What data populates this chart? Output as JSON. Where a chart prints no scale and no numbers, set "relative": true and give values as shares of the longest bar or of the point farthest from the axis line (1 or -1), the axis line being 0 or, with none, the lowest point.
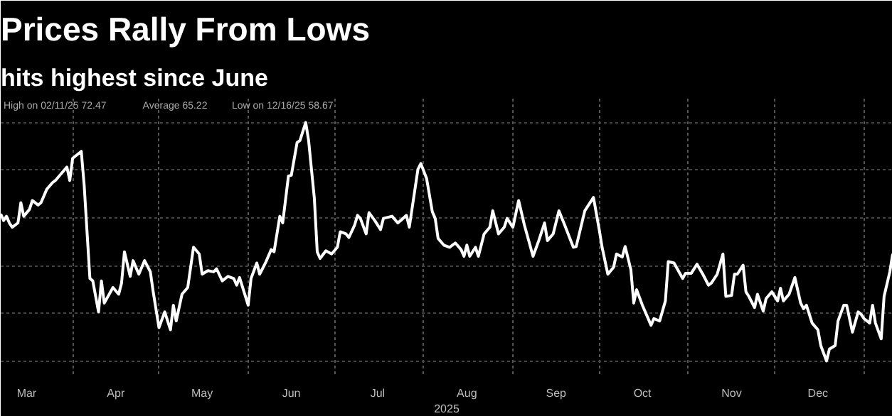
{
  "chart_data": {
    "type": "line",
    "title": "Prices Rally From Lows",
    "subtitle": "hits highest since June",
    "xlabel": "2025",
    "annotations": [
      "High on 02/11/25 72.47",
      "Average 65.22",
      "Low on 12/16/25 58.67"
    ],
    "relative": true,
    "grid": true,
    "line_style": "solid",
    "xlim": [
      "2025-03-07",
      "2026-01-11"
    ],
    "xticks": [
      {
        "value": "2025-03-16",
        "label": "Mar"
      },
      {
        "value": "2025-04-01",
        "label": null
      },
      {
        "value": "2025-04-16",
        "label": "Apr"
      },
      {
        "value": "2025-05-01",
        "label": null
      },
      {
        "value": "2025-05-16",
        "label": "May"
      },
      {
        "value": "2025-06-01",
        "label": null
      },
      {
        "value": "2025-06-16",
        "label": "Jun"
      },
      {
        "value": "2025-07-01",
        "label": null
      },
      {
        "value": "2025-07-16",
        "label": "Jul"
      },
      {
        "value": "2025-08-01",
        "label": null
      },
      {
        "value": "2025-08-16",
        "label": "Aug"
      },
      {
        "value": "2025-09-01",
        "label": null
      },
      {
        "value": "2025-09-16",
        "label": "Sep"
      },
      {
        "value": "2025-10-01",
        "label": null
      },
      {
        "value": "2025-10-16",
        "label": "Oct"
      },
      {
        "value": "2025-11-01",
        "label": null
      },
      {
        "value": "2025-11-16",
        "label": "Nov"
      },
      {
        "value": "2025-12-01",
        "label": null
      },
      {
        "value": "2025-12-16",
        "label": "Dec"
      },
      {
        "value": "2026-01-01",
        "label": null
      }
    ],
    "x": [
      "2025-03-07",
      "2025-03-08",
      "2025-03-09",
      "2025-03-10",
      "2025-03-11",
      "2025-03-13",
      "2025-03-14",
      "2025-03-15",
      "2025-03-17",
      "2025-03-18",
      "2025-03-20",
      "2025-03-21",
      "2025-03-23",
      "2025-03-25",
      "2025-03-26",
      "2025-03-28",
      "2025-03-30",
      "2025-03-31",
      "2025-04-01",
      "2025-04-04",
      "2025-04-05",
      "2025-04-07",
      "2025-04-08",
      "2025-04-10",
      "2025-04-11",
      "2025-04-12",
      "2025-04-15",
      "2025-04-17",
      "2025-04-18",
      "2025-04-19",
      "2025-04-21",
      "2025-04-22",
      "2025-04-24",
      "2025-04-26",
      "2025-04-28",
      "2025-04-29",
      "2025-05-01",
      "2025-05-03",
      "2025-05-05",
      "2025-05-06",
      "2025-05-07",
      "2025-05-09",
      "2025-05-11",
      "2025-05-13",
      "2025-05-15",
      "2025-05-16",
      "2025-05-18",
      "2025-05-20",
      "2025-05-21",
      "2025-05-23",
      "2025-05-25",
      "2025-05-27",
      "2025-05-28",
      "2025-05-29",
      "2025-06-01",
      "2025-06-02",
      "2025-06-04",
      "2025-06-05",
      "2025-06-07",
      "2025-06-09",
      "2025-06-10",
      "2025-06-12",
      "2025-06-13",
      "2025-06-15",
      "2025-06-16",
      "2025-06-18",
      "2025-06-19",
      "2025-06-21",
      "2025-06-22",
      "2025-06-24",
      "2025-06-25",
      "2025-06-26",
      "2025-06-28",
      "2025-06-30",
      "2025-07-02",
      "2025-07-03",
      "2025-07-05",
      "2025-07-06",
      "2025-07-08",
      "2025-07-09",
      "2025-07-10",
      "2025-07-12",
      "2025-07-13",
      "2025-07-15",
      "2025-07-17",
      "2025-07-18",
      "2025-07-21",
      "2025-07-23",
      "2025-07-24",
      "2025-07-26",
      "2025-07-27",
      "2025-07-30",
      "2025-07-31",
      "2025-08-02",
      "2025-08-04",
      "2025-08-05",
      "2025-08-06",
      "2025-08-08",
      "2025-08-10",
      "2025-08-12",
      "2025-08-14",
      "2025-08-15",
      "2025-08-16",
      "2025-08-17",
      "2025-08-19",
      "2025-08-20",
      "2025-08-22",
      "2025-08-24",
      "2025-08-25",
      "2025-08-27",
      "2025-08-29",
      "2025-08-30",
      "2025-09-01",
      "2025-09-03",
      "2025-09-05",
      "2025-09-08",
      "2025-09-10",
      "2025-09-12",
      "2025-09-13",
      "2025-09-15",
      "2025-09-17",
      "2025-09-19",
      "2025-09-22",
      "2025-09-23",
      "2025-09-26",
      "2025-09-29",
      "2025-10-01",
      "2025-10-02",
      "2025-10-04",
      "2025-10-06",
      "2025-10-07",
      "2025-10-09",
      "2025-10-10",
      "2025-10-12",
      "2025-10-13",
      "2025-10-14",
      "2025-10-16",
      "2025-10-17",
      "2025-10-19",
      "2025-10-20",
      "2025-10-22",
      "2025-10-24",
      "2025-10-25",
      "2025-10-27",
      "2025-10-30",
      "2025-10-31",
      "2025-11-02",
      "2025-11-04",
      "2025-11-06",
      "2025-11-08",
      "2025-11-09",
      "2025-11-11",
      "2025-11-13",
      "2025-11-14",
      "2025-11-16",
      "2025-11-17",
      "2025-11-18",
      "2025-11-20",
      "2025-11-21",
      "2025-11-22",
      "2025-11-24",
      "2025-11-25",
      "2025-11-27",
      "2025-11-28",
      "2025-11-30",
      "2025-12-02",
      "2025-12-03",
      "2025-12-04",
      "2025-12-06",
      "2025-12-08",
      "2025-12-10",
      "2025-12-11",
      "2025-12-12",
      "2025-12-14",
      "2025-12-16",
      "2025-12-17",
      "2025-12-19",
      "2025-12-20",
      "2025-12-22",
      "2025-12-23",
      "2025-12-25",
      "2025-12-26",
      "2025-12-28",
      "2025-12-30",
      "2025-12-31",
      "2026-01-01",
      "2026-01-03",
      "2026-01-04",
      "2026-01-05",
      "2026-01-07",
      "2026-01-08",
      "2026-01-10",
      "2026-01-11"
    ],
    "series": [
      {
        "color": "#ffffff",
        "values": [
          0.617,
          0.589,
          0.607,
          0.579,
          0.561,
          0.579,
          0.664,
          0.607,
          0.636,
          0.673,
          0.654,
          0.664,
          0.72,
          0.748,
          0.757,
          0.785,
          0.813,
          0.757,
          0.85,
          0.879,
          0.738,
          0.346,
          0.336,
          0.206,
          0.336,
          0.243,
          0.308,
          0.28,
          0.327,
          0.458,
          0.355,
          0.421,
          0.364,
          0.421,
          0.374,
          0.29,
          0.14,
          0.206,
          0.131,
          0.234,
          0.168,
          0.28,
          0.308,
          0.477,
          0.449,
          0.364,
          0.379,
          0.374,
          0.387,
          0.336,
          0.355,
          0.346,
          0.318,
          0.35,
          0.234,
          0.346,
          0.411,
          0.364,
          0.411,
          0.467,
          0.458,
          0.607,
          0.579,
          0.776,
          0.779,
          0.916,
          0.925,
          1,
          0.925,
          0.682,
          0.458,
          0.43,
          0.462,
          0.449,
          0.477,
          0.542,
          0.533,
          0.518,
          0.57,
          0.611,
          0.598,
          0.533,
          0.622,
          0.589,
          0.551,
          0.598,
          0.607,
          0.579,
          0.589,
          0.611,
          0.561,
          0.804,
          0.828,
          0.766,
          0.626,
          0.598,
          0.514,
          0.486,
          0.477,
          0.495,
          0.467,
          0.439,
          0.486,
          0.439,
          0.477,
          0.439,
          0.533,
          0.561,
          0.63,
          0.533,
          0.561,
          0.598,
          0.561,
          0.673,
          0.57,
          0.439,
          0.505,
          0.579,
          0.505,
          0.533,
          0.63,
          0.57,
          0.477,
          0.48,
          0.63,
          0.686,
          0.551,
          0.477,
          0.364,
          0.393,
          0.449,
          0.436,
          0.48,
          0.383,
          0.243,
          0.299,
          0.234,
          0.206,
          0.15,
          0.178,
          0.168,
          0.252,
          0.417,
          0.411,
          0.346,
          0.368,
          0.368,
          0.406,
          0.364,
          0.318,
          0.327,
          0.364,
          0.449,
          0.271,
          0.275,
          0.364,
          0.364,
          0.402,
          0.29,
          0.271,
          0.224,
          0.28,
          0.209,
          0.262,
          0.29,
          0.252,
          0.305,
          0.252,
          0.28,
          0.35,
          0.243,
          0.219,
          0.234,
          0.159,
          0.131,
          0.065,
          0,
          0.05,
          0.065,
          0.168,
          0.234,
          0.234,
          0.121,
          0.206,
          0.196,
          0.178,
          0.159,
          0.234,
          0.159,
          0.093,
          0.271,
          0.374,
          0.449
        ]
      }
    ]
  }
}
